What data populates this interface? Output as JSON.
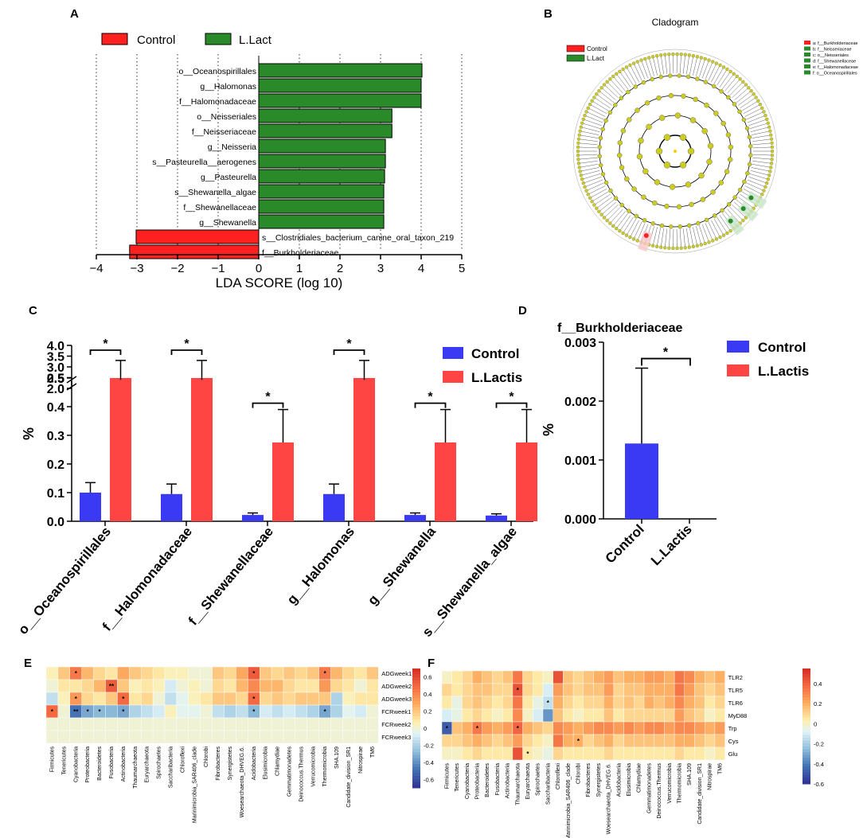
{
  "colors": {
    "green": "#2a8a2a",
    "red": "#ff2020",
    "blue": "#3a3af5",
    "red2": "#ff4444",
    "clado_node": "#cccc22",
    "clado_bg": "#ffffff"
  },
  "panels": {
    "A": {
      "letter": "A"
    },
    "B": {
      "letter": "B"
    },
    "C": {
      "letter": "C"
    },
    "D": {
      "letter": "D"
    },
    "E": {
      "letter": "E"
    },
    "F": {
      "letter": "F"
    }
  },
  "chart_data": [
    {
      "id": "A",
      "type": "bar",
      "orientation": "horizontal",
      "legend": [
        "Control",
        "L.Lact"
      ],
      "xlabel": "LDA SCORE (log 10)",
      "xlim": [
        -4,
        5
      ],
      "xticks": [
        "−4",
        "−3",
        "−2",
        "−1",
        "0",
        "1",
        "2",
        "3",
        "4",
        "5"
      ],
      "categories": [
        "o__Oceanospirillales",
        "g__Halomonas",
        "f__Halomonadaceae",
        "o__Neisseriales",
        "f__Neisseriaceae",
        "g__Neisseria",
        "s__Pasteurella__aerogenes",
        "g__Pasteurella",
        "s__Shewanella_algae",
        "f__Shewanellaceae",
        "g__Shewanella",
        "s__Clostridiales_bacterium_canine_oral_taxon_219",
        "f__Burkholderiaceae"
      ],
      "values": [
        4.02,
        4.0,
        4.0,
        3.28,
        3.28,
        3.12,
        3.12,
        3.1,
        3.08,
        3.08,
        3.08,
        -3.02,
        -3.18
      ],
      "groups": [
        "L.Lact",
        "L.Lact",
        "L.Lact",
        "L.Lact",
        "L.Lact",
        "L.Lact",
        "L.Lact",
        "L.Lact",
        "L.Lact",
        "L.Lact",
        "L.Lact",
        "Control",
        "Control"
      ]
    },
    {
      "id": "B",
      "type": "other",
      "title": "Cladogram",
      "legend": [
        "Control",
        "L.Lact"
      ],
      "key": [
        "a: f__Burkholderiaceae",
        "b: f__Neisseriaceae",
        "c: o__Neisseriales",
        "d: f__Shewanellaceae",
        "e: f__Halomonadaceae",
        "f: o__Oceanospirillales"
      ]
    },
    {
      "id": "C",
      "type": "bar",
      "ylabel": "%",
      "yticks_lower": [
        "0.0",
        "0.1",
        "0.2",
        "0.3",
        "0.4",
        "0.5"
      ],
      "yticks_upper": [
        "2.0",
        "2.5",
        "3.0",
        "3.5",
        "4.0"
      ],
      "ylim_lower": [
        0,
        0.5
      ],
      "ylim_upper": [
        2.0,
        4.0
      ],
      "categories": [
        "o__Oceanospirillales",
        "f__Halomonadaceae",
        "f__Shewanellaceae",
        "g__Halomonas",
        "g__Shewanella",
        "s__Shewanella_algae"
      ],
      "series": [
        {
          "name": "Control",
          "values": [
            0.1,
            0.095,
            0.022,
            0.095,
            0.022,
            0.02
          ],
          "errors": [
            0.035,
            0.035,
            0.007,
            0.035,
            0.007,
            0.006
          ]
        },
        {
          "name": "L.Lactis",
          "values": [
            2.4,
            2.4,
            0.275,
            2.4,
            0.275,
            0.275
          ],
          "errors": [
            0.9,
            0.9,
            0.115,
            0.9,
            0.115,
            0.115
          ]
        }
      ],
      "significance": [
        "*",
        "*",
        "*",
        "*",
        "*",
        "*"
      ]
    },
    {
      "id": "D",
      "type": "bar",
      "title": "f__Burkholderiaceae",
      "ylabel": "%",
      "ylim": [
        0,
        0.003
      ],
      "yticks": [
        "0.000",
        "0.001",
        "0.002",
        "0.003"
      ],
      "categories": [
        "Control",
        "L.Lactis"
      ],
      "values": [
        0.00128,
        0.0
      ],
      "errors": [
        0.00128,
        0.0
      ],
      "legend": [
        "Control",
        "L.Lactis"
      ],
      "significance": "*"
    },
    {
      "id": "E",
      "type": "heatmap",
      "rows": [
        "ADGweek1",
        "ADGweek2",
        "ADGweek3",
        "FCRweek1",
        "FCRweek2",
        "FCRweek3"
      ],
      "columns": [
        "Firmicutes",
        "Tenericutes",
        "Cyanobacteria",
        "Proteobacteria",
        "Bacteroidetes",
        "Fusobacteria",
        "Actinobacteria",
        "Thaumarchaeota",
        "Euryarchaeota",
        "Spirochaetes",
        "Saccharibacteria",
        "Chloroflexi",
        "Marinimicrobia_SAR406_clade",
        "Chlorobi",
        "Fibrobacteres",
        "Synergistetes",
        "Woesearchaeota_DHVEG.6.",
        "Acidobacteria",
        "Elusimicrobia",
        "Chlamydiae",
        "Gemmatimonadetes",
        "Deinococcus.Thermus",
        "Verrucomicrobia",
        "Thermomicrobia",
        "SHA.109",
        "Candidate_division_SR1",
        "Nitrospirae",
        "TM6"
      ],
      "values": [
        [
          0.05,
          0.2,
          0.45,
          0.25,
          0.15,
          0.1,
          0.3,
          0.2,
          0.15,
          0.1,
          0.05,
          0.05,
          0.0,
          0.0,
          0.2,
          0.15,
          0.3,
          0.55,
          0.2,
          0.15,
          0.2,
          0.15,
          0.2,
          0.45,
          0.25,
          0.15,
          0.1,
          0.2
        ],
        [
          0.0,
          0.1,
          0.1,
          0.15,
          0.25,
          0.55,
          0.2,
          0.05,
          0.1,
          0.05,
          -0.1,
          0.0,
          0.05,
          0.0,
          0.15,
          0.1,
          0.25,
          0.4,
          0.25,
          0.25,
          0.15,
          0.1,
          0.1,
          0.35,
          0.15,
          0.1,
          0.0,
          0.1
        ],
        [
          -0.15,
          0.05,
          0.35,
          0.15,
          0.1,
          0.2,
          0.5,
          0.1,
          0.15,
          0.0,
          -0.15,
          -0.05,
          0.05,
          0.1,
          0.2,
          0.2,
          0.15,
          0.5,
          0.15,
          0.2,
          0.15,
          0.2,
          0.2,
          0.2,
          -0.2,
          0.05,
          0.1,
          0.1
        ],
        [
          0.5,
          0.0,
          -0.5,
          -0.35,
          -0.3,
          -0.3,
          -0.35,
          -0.2,
          -0.15,
          -0.1,
          0.05,
          -0.05,
          -0.05,
          0.0,
          -0.15,
          -0.2,
          -0.15,
          -0.3,
          -0.1,
          -0.15,
          -0.1,
          -0.15,
          -0.2,
          -0.35,
          -0.2,
          -0.05,
          -0.1,
          0.0
        ],
        [
          0.0,
          0.0,
          0.0,
          0.0,
          0.0,
          0.0,
          0.0,
          0.0,
          0.0,
          0.0,
          0.0,
          0.0,
          0.0,
          0.0,
          0.0,
          0.0,
          0.0,
          0.0,
          0.0,
          0.0,
          0.0,
          0.0,
          0.0,
          0.0,
          0.0,
          0.0,
          0.0,
          0.0
        ],
        [
          0.0,
          0.0,
          0.0,
          0.0,
          0.0,
          0.0,
          0.0,
          0.0,
          0.0,
          0.0,
          0.0,
          0.0,
          0.0,
          0.0,
          0.0,
          0.0,
          0.0,
          0.0,
          0.0,
          0.0,
          0.0,
          0.0,
          0.0,
          0.0,
          0.0,
          0.0,
          0.0,
          0.0
        ]
      ],
      "stars": [
        [
          "",
          "",
          "*",
          "",
          "",
          "",
          "",
          "",
          "",
          "",
          "",
          "",
          "",
          "",
          "",
          "",
          "",
          "*",
          "",
          "",
          "",
          "",
          "",
          "*",
          "",
          "",
          "",
          ""
        ],
        [
          "",
          "",
          "",
          "",
          "",
          "**",
          "",
          "",
          "",
          "",
          "",
          "",
          "",
          "",
          "",
          "",
          "",
          "",
          "",
          "",
          "",
          "",
          "",
          "",
          "",
          "",
          "",
          ""
        ],
        [
          "",
          "",
          "*",
          "",
          "",
          "",
          "*",
          "",
          "",
          "",
          "",
          "",
          "",
          "",
          "",
          "",
          "",
          "*",
          "",
          "",
          "",
          "",
          "",
          "",
          "",
          "",
          "",
          ""
        ],
        [
          "*",
          "",
          "**",
          "*",
          "*",
          "",
          "*",
          "",
          "",
          "",
          "",
          "",
          "",
          "",
          "",
          "",
          "",
          "*",
          "",
          "",
          "",
          "",
          "",
          "*",
          "",
          "",
          "",
          ""
        ],
        [
          "",
          "",
          "",
          "",
          "",
          "",
          "",
          "",
          "",
          "",
          "",
          "",
          "",
          "",
          "",
          "",
          "",
          "",
          "",
          "",
          "",
          "",
          "",
          "",
          "",
          "",
          "",
          ""
        ],
        [
          "",
          "",
          "",
          "",
          "",
          "",
          "",
          "",
          "",
          "",
          "",
          "",
          "",
          "",
          "",
          "",
          "",
          "",
          "",
          "",
          "",
          "",
          "",
          "",
          "",
          "",
          "",
          ""
        ]
      ],
      "colorbar_ticks": [
        "0.6",
        "0.4",
        "0.2",
        "0",
        "-0.2",
        "-0.4",
        "-0.6"
      ],
      "clim": [
        -0.7,
        0.7
      ]
    },
    {
      "id": "F",
      "type": "heatmap",
      "rows": [
        "TLR2",
        "TLR5",
        "TLR6",
        "MyD88",
        "Trp",
        "Cys",
        "Glu"
      ],
      "columns": [
        "Firmicutes",
        "Tenericutes",
        "Cyanobacteria",
        "Proteobacteria",
        "Bacteroidetes",
        "Fusobacteria",
        "Actinobacteria",
        "Thaumarchaeota",
        "Euryarchaeota",
        "Spirochaetes",
        "Saccharibacteria",
        "Chloroflexi",
        "Marinimicrobia_SAR406_clade",
        "Chlorobi",
        "Fibrobacteres",
        "Synergistetes",
        "Woesearchaeota_DHVEG.6.",
        "Acidobacteria",
        "Elusimicrobia",
        "Chlamydiae",
        "Gemmatimonadetes",
        "Deinococcus.Thermus",
        "Verrucomicrobia",
        "Thermomicrobia",
        "SHA.109",
        "Candidate_division_SR1",
        "Nitrospirae",
        "TM6"
      ],
      "values": [
        [
          0.0,
          0.05,
          0.1,
          0.2,
          0.15,
          0.1,
          0.15,
          0.35,
          0.1,
          0.05,
          0.0,
          0.45,
          0.15,
          0.1,
          0.15,
          0.2,
          0.25,
          0.15,
          0.2,
          0.2,
          0.25,
          0.25,
          0.2,
          0.35,
          0.3,
          0.2,
          0.15,
          0.2
        ],
        [
          0.1,
          0.05,
          0.1,
          0.15,
          0.15,
          0.1,
          0.1,
          0.45,
          0.1,
          0.05,
          -0.1,
          0.25,
          0.15,
          0.1,
          0.15,
          0.15,
          0.25,
          0.1,
          0.15,
          0.15,
          0.2,
          0.2,
          0.2,
          0.35,
          0.25,
          0.15,
          0.1,
          0.15
        ],
        [
          0.05,
          -0.05,
          0.1,
          0.15,
          0.1,
          0.05,
          0.1,
          0.35,
          0.05,
          -0.05,
          -0.15,
          0.2,
          0.1,
          0.05,
          0.1,
          0.1,
          0.2,
          0.1,
          0.15,
          0.1,
          0.2,
          0.15,
          0.2,
          0.3,
          0.2,
          0.15,
          0.05,
          0.1
        ],
        [
          -0.1,
          -0.05,
          0.05,
          0.1,
          0.05,
          0.0,
          0.05,
          0.3,
          0.0,
          -0.1,
          -0.35,
          0.15,
          0.05,
          0.0,
          0.05,
          0.05,
          0.15,
          0.05,
          0.1,
          0.1,
          0.1,
          0.1,
          0.1,
          0.25,
          0.15,
          0.1,
          0.0,
          0.05
        ],
        [
          -0.5,
          0.15,
          0.2,
          0.35,
          0.25,
          0.2,
          0.25,
          0.4,
          0.2,
          0.15,
          0.1,
          0.3,
          0.25,
          0.2,
          0.25,
          0.3,
          0.3,
          0.25,
          0.3,
          0.25,
          0.3,
          0.3,
          0.25,
          0.3,
          0.3,
          0.25,
          0.2,
          0.25
        ],
        [
          0.1,
          0.1,
          0.15,
          0.2,
          0.15,
          0.1,
          0.15,
          0.25,
          0.1,
          0.05,
          0.0,
          0.35,
          0.2,
          0.2,
          0.1,
          0.15,
          0.2,
          0.1,
          0.15,
          0.15,
          0.15,
          0.15,
          0.15,
          0.2,
          0.2,
          0.15,
          0.1,
          0.15
        ],
        [
          0.0,
          0.0,
          0.05,
          0.1,
          0.05,
          0.05,
          0.05,
          0.45,
          0.05,
          0.0,
          -0.05,
          0.1,
          0.05,
          0.05,
          0.05,
          0.05,
          0.1,
          0.05,
          0.05,
          0.05,
          0.05,
          0.05,
          0.05,
          0.1,
          0.05,
          0.05,
          0.0,
          0.05
        ]
      ],
      "stars": [
        [
          "",
          "",
          "",
          "",
          "",
          "",
          "",
          "",
          "",
          "",
          "",
          "",
          "",
          "",
          "",
          "",
          "",
          "",
          "",
          "",
          "",
          "",
          "",
          "",
          "",
          "",
          "",
          ""
        ],
        [
          "",
          "",
          "",
          "",
          "",
          "",
          "",
          "*",
          "",
          "",
          "",
          "",
          "",
          "",
          "",
          "",
          "",
          "",
          "",
          "",
          "",
          "",
          "",
          "",
          "",
          "",
          "",
          ""
        ],
        [
          "",
          "",
          "",
          "",
          "",
          "",
          "",
          "",
          "",
          "",
          "*",
          "",
          "",
          "",
          "",
          "",
          "",
          "",
          "",
          "",
          "",
          "",
          "",
          "",
          "",
          "",
          "",
          ""
        ],
        [
          "",
          "",
          "",
          "",
          "",
          "",
          "",
          "",
          "",
          "",
          "",
          "",
          "",
          "",
          "",
          "",
          "",
          "",
          "",
          "",
          "",
          "",
          "",
          "",
          "",
          "",
          "",
          ""
        ],
        [
          "*",
          "",
          "",
          "*",
          "",
          "",
          "",
          "*",
          "",
          "",
          "",
          "",
          "",
          "",
          "",
          "",
          "",
          "",
          "",
          "",
          "",
          "",
          "",
          "",
          "",
          "",
          "",
          ""
        ],
        [
          "",
          "",
          "",
          "",
          "",
          "",
          "",
          "",
          "",
          "",
          "",
          "",
          "",
          "*",
          "",
          "",
          "",
          "",
          "",
          "",
          "",
          "",
          "",
          "",
          "",
          "",
          "",
          ""
        ],
        [
          "",
          "",
          "",
          "",
          "",
          "",
          "",
          "",
          "*",
          "",
          "",
          "",
          "",
          "",
          "",
          "",
          "",
          "",
          "",
          "",
          "",
          "",
          "",
          "",
          "",
          "",
          "",
          ""
        ]
      ],
      "colorbar_ticks": [
        "0.4",
        "0.2",
        "0",
        "-0.2",
        "-0.4",
        "-0.6"
      ],
      "clim": [
        -0.6,
        0.55
      ]
    }
  ]
}
